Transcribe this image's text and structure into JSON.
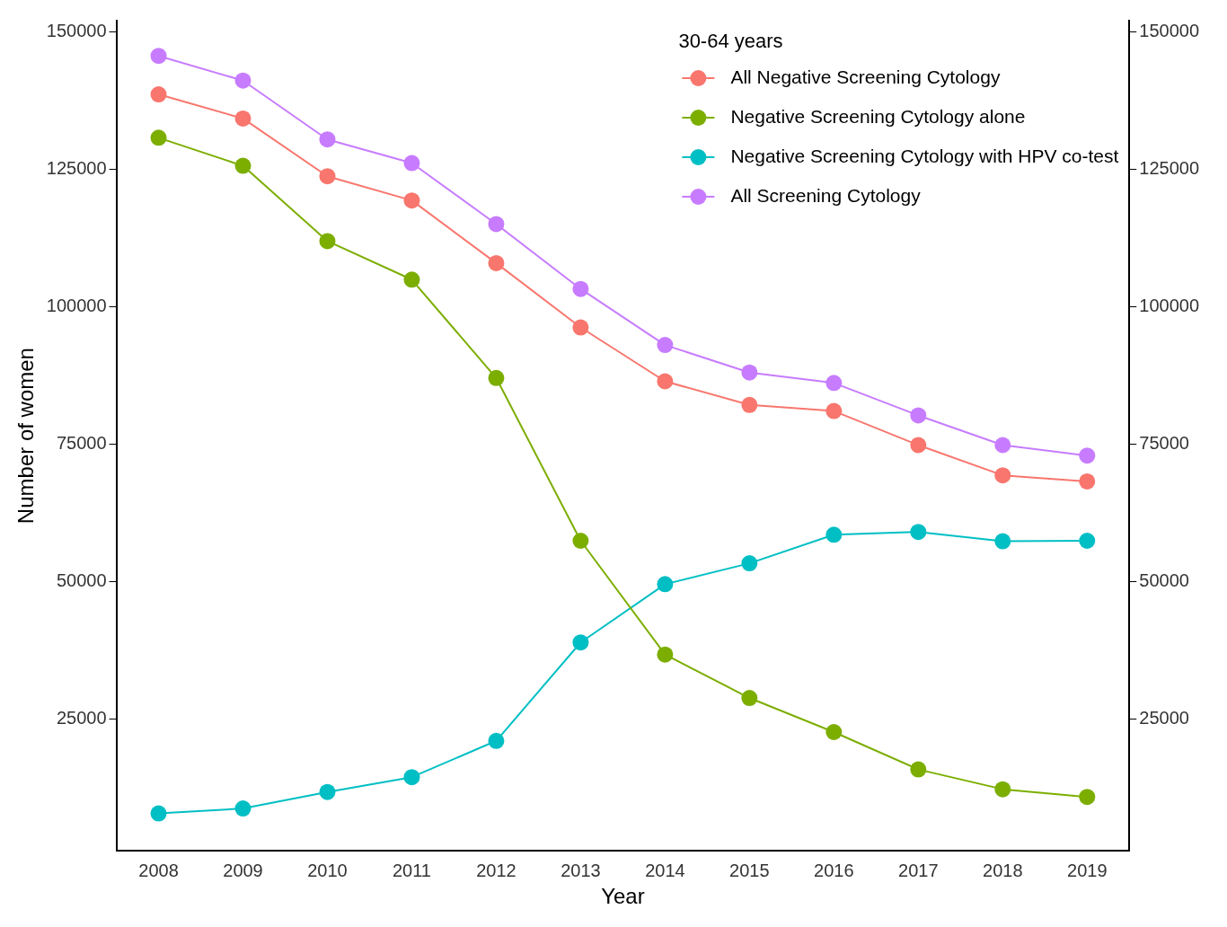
{
  "chart_data": {
    "type": "line",
    "xlabel": "Year",
    "ylabel": "Number of women",
    "legend_title": "30-64 years",
    "categories": [
      "2008",
      "2009",
      "2010",
      "2011",
      "2012",
      "2013",
      "2014",
      "2015",
      "2016",
      "2017",
      "2018",
      "2019"
    ],
    "series": [
      {
        "name": "All Negative Screening Cytology",
        "color": "#f8766d",
        "values": [
          138600,
          134200,
          123700,
          119300,
          107900,
          96200,
          86400,
          82100,
          81000,
          74800,
          69300,
          68200
        ]
      },
      {
        "name": "Negative Screening Cytology alone",
        "color": "#7cae00",
        "values": [
          130700,
          125600,
          111900,
          104900,
          87000,
          57400,
          36700,
          28800,
          22600,
          15800,
          12200,
          10800
        ]
      },
      {
        "name": "Negative Screening Cytology with HPV co-test",
        "color": "#00bfc4",
        "values": [
          7800,
          8700,
          11700,
          14400,
          21000,
          38900,
          49500,
          53300,
          58500,
          59000,
          57300,
          57400
        ]
      },
      {
        "name": "All Screening Cytology",
        "color": "#c77cff",
        "values": [
          145600,
          141100,
          130400,
          126100,
          115000,
          103200,
          93000,
          88000,
          86100,
          80200,
          74800,
          72900
        ]
      }
    ],
    "ylim": [
      1000,
      152000
    ],
    "yticks": [
      25000,
      50000,
      75000,
      100000,
      125000,
      150000
    ],
    "y2lim": [
      1000,
      152000
    ],
    "y2ticks": [
      25000,
      50000,
      75000,
      100000,
      125000,
      150000
    ],
    "grid": false,
    "legend": "top right",
    "marker": "circle",
    "line_style": "solid"
  }
}
